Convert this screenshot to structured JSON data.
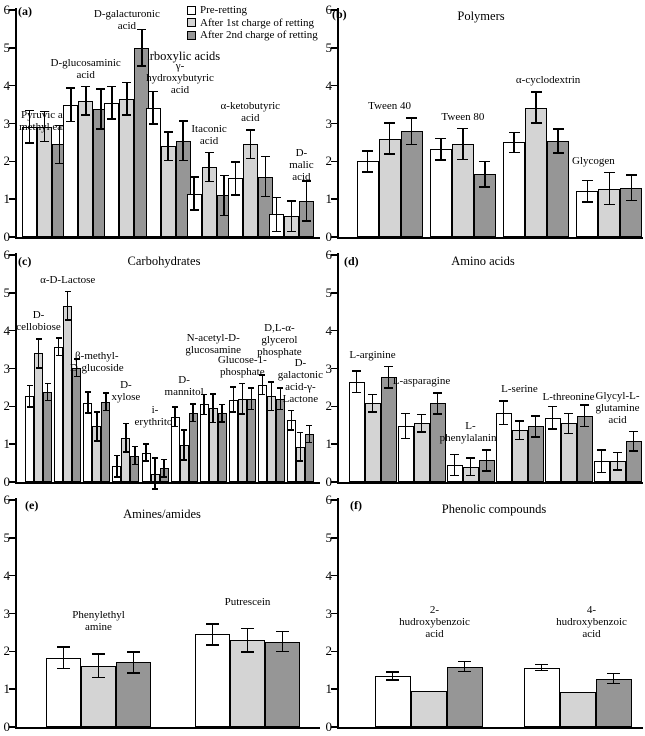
{
  "figure": {
    "background": "#ffffff",
    "text_color": "#000000",
    "legend": {
      "position": "top-right of panel (a)",
      "entries": [
        {
          "label": "Pre-retting",
          "color": "#ffffff"
        },
        {
          "label": "After 1st charge of retting",
          "color": "#d4d4d4"
        },
        {
          "label": "After 2nd charge of retting",
          "color": "#969696"
        }
      ]
    }
  },
  "chart_data": [
    {
      "type": "bar",
      "panel_letter": "(a)",
      "title": "Carboxylic acids",
      "ylim": [
        0,
        6
      ],
      "yticks": [
        0,
        1,
        2,
        3,
        4,
        5,
        6
      ],
      "grid": false,
      "categories": [
        "Pyruvic acid\nmethyl easter",
        "D-glucosaminic\nacid",
        "D-galacturonic\nacid",
        "γ-\nhydroxybutyric\nacid",
        "Itaconic\nacid",
        "α-ketobutyric\nacid",
        "D-malic\nacid"
      ],
      "series": [
        {
          "name": "Pre-retting",
          "values": [
            2.92,
            3.5,
            3.55,
            3.42,
            1.15,
            1.55,
            0.6
          ]
        },
        {
          "name": "After 1st charge of retting",
          "values": [
            2.92,
            3.6,
            3.65,
            2.4,
            1.85,
            2.45,
            0.55
          ]
        },
        {
          "name": "After 2nd charge of retting",
          "values": [
            2.45,
            3.38,
            5.0,
            2.55,
            1.1,
            1.6,
            0.95
          ]
        }
      ],
      "errors": [
        [
          0.45,
          0.46,
          0.45,
          0.45,
          0.46,
          0.46,
          0.47
        ],
        [
          0.42,
          0.4,
          0.45,
          0.4,
          0.4,
          0.4,
          0.42
        ],
        [
          0.52,
          0.55,
          0.5,
          0.54,
          0.55,
          0.55,
          0.55
        ]
      ]
    },
    {
      "type": "bar",
      "panel_letter": "(b)",
      "title": "Polymers",
      "ylim": [
        0,
        6
      ],
      "yticks": [
        0,
        1,
        2,
        3,
        4,
        5,
        6
      ],
      "grid": false,
      "categories": [
        "Tween 40",
        "Tween 80",
        "α-cyclodextrin",
        "Glycogen"
      ],
      "series": [
        {
          "name": "Pre-retting",
          "values": [
            2.0,
            2.32,
            2.5,
            1.21
          ]
        },
        {
          "name": "After 1st charge of retting",
          "values": [
            2.6,
            2.46,
            3.42,
            1.28
          ]
        },
        {
          "name": "After 2nd charge of retting",
          "values": [
            2.8,
            1.66,
            2.54,
            1.3
          ]
        }
      ],
      "errors": [
        [
          0.3,
          0.3,
          0.28,
          0.3
        ],
        [
          0.43,
          0.43,
          0.43,
          0.44
        ],
        [
          0.37,
          0.36,
          0.34,
          0.36
        ]
      ]
    },
    {
      "type": "bar",
      "panel_letter": "(c)",
      "title": "Carbohydrates",
      "ylim": [
        0,
        6
      ],
      "yticks": [
        0,
        1,
        2,
        3,
        4,
        5,
        6
      ],
      "grid": false,
      "categories": [
        "D-\ncellobiose",
        "α-D-Lactose",
        "β-methyl-\nD-glucoside",
        "D-\nxylose",
        "i-\nerythritol",
        "D-\nmannitol",
        "N-acetyl-D-\nglucosamine",
        "Glucose-1-\nphosphate",
        "D,L-α-glycerol\nphosphate",
        "D-\ngalactonic\nacid-γ-\nLactone"
      ],
      "series": [
        {
          "name": "Pre-retting",
          "values": [
            2.27,
            3.58,
            2.1,
            0.42,
            0.78,
            1.73,
            2.05,
            2.18,
            2.57,
            1.63
          ]
        },
        {
          "name": "After 1st charge of retting",
          "values": [
            3.4,
            4.66,
            1.47,
            1.17,
            0.22,
            0.98,
            1.95,
            2.2,
            2.27,
            0.93
          ]
        },
        {
          "name": "After 2nd charge of retting",
          "values": [
            2.38,
            3.02,
            2.12,
            0.7,
            0.37,
            1.83,
            1.82,
            2.2,
            2.2,
            1.27
          ]
        }
      ],
      "errors": [
        [
          0.3,
          0.25,
          0.3,
          0.3,
          0.25,
          0.28,
          0.28,
          0.35,
          0.28,
          0.28
        ],
        [
          0.4,
          0.4,
          0.4,
          0.4,
          0.43,
          0.42,
          0.4,
          0.42,
          0.4,
          0.4
        ],
        [
          0.25,
          0.25,
          0.25,
          0.26,
          0.25,
          0.25,
          0.25,
          0.3,
          0.3,
          0.25
        ]
      ]
    },
    {
      "type": "bar",
      "panel_letter": "(d)",
      "title": "Amino acids",
      "ylim": [
        0,
        6
      ],
      "yticks": [
        0,
        1,
        2,
        3,
        4,
        5,
        6
      ],
      "grid": false,
      "categories": [
        "L-arginine",
        "L-asparagine",
        "L-\nphenylalanine",
        "L-serine",
        "L-threonine",
        "Glycyl-L-\nglutamine\nacid"
      ],
      "series": [
        {
          "name": "Pre-retting",
          "values": [
            2.65,
            1.48,
            0.45,
            1.83,
            1.7,
            0.55
          ]
        },
        {
          "name": "After 1st charge of retting",
          "values": [
            2.08,
            1.55,
            0.4,
            1.37,
            1.55,
            0.55
          ]
        },
        {
          "name": "After 2nd charge of retting",
          "values": [
            2.77,
            2.08,
            0.57,
            1.47,
            1.75,
            1.08
          ]
        }
      ],
      "errors": [
        [
          0.3,
          0.35,
          0.3,
          0.33,
          0.32,
          0.32
        ],
        [
          0.25,
          0.25,
          0.25,
          0.27,
          0.28,
          0.25
        ],
        [
          0.3,
          0.3,
          0.3,
          0.3,
          0.3,
          0.28
        ]
      ]
    },
    {
      "type": "bar",
      "panel_letter": "(e)",
      "title": "Amines/amides",
      "ylim": [
        0,
        6
      ],
      "yticks": [
        0,
        1,
        2,
        3,
        4,
        5,
        6
      ],
      "grid": false,
      "categories": [
        "Phenylethyl\namine",
        "Putrescein"
      ],
      "series": [
        {
          "name": "Pre-retting",
          "values": [
            1.83,
            2.45
          ]
        },
        {
          "name": "After 1st charge of retting",
          "values": [
            1.62,
            2.3
          ]
        },
        {
          "name": "After 2nd charge of retting",
          "values": [
            1.71,
            2.26
          ]
        }
      ],
      "errors": [
        [
          0.3,
          0.3
        ],
        [
          0.33,
          0.33
        ],
        [
          0.3,
          0.28
        ]
      ]
    },
    {
      "type": "bar",
      "panel_letter": "(f)",
      "title": "Phenolic compounds",
      "ylim": [
        0,
        6
      ],
      "yticks": [
        0,
        1,
        2,
        3,
        4,
        5,
        6
      ],
      "grid": false,
      "categories": [
        "2-\nhudroxybenzoic\nacid",
        "4-\nhudroxybenzoic\nacid"
      ],
      "series": [
        {
          "name": "Pre-retting",
          "values": [
            1.35,
            1.57
          ]
        },
        {
          "name": "After 1st charge of retting",
          "values": [
            0.95,
            0.93
          ]
        },
        {
          "name": "After 2nd charge of retting",
          "values": [
            1.6,
            1.28
          ]
        }
      ],
      "errors": [
        [
          0.12,
          0.1
        ],
        [
          0,
          0
        ],
        [
          0.15,
          0.15
        ]
      ]
    }
  ]
}
